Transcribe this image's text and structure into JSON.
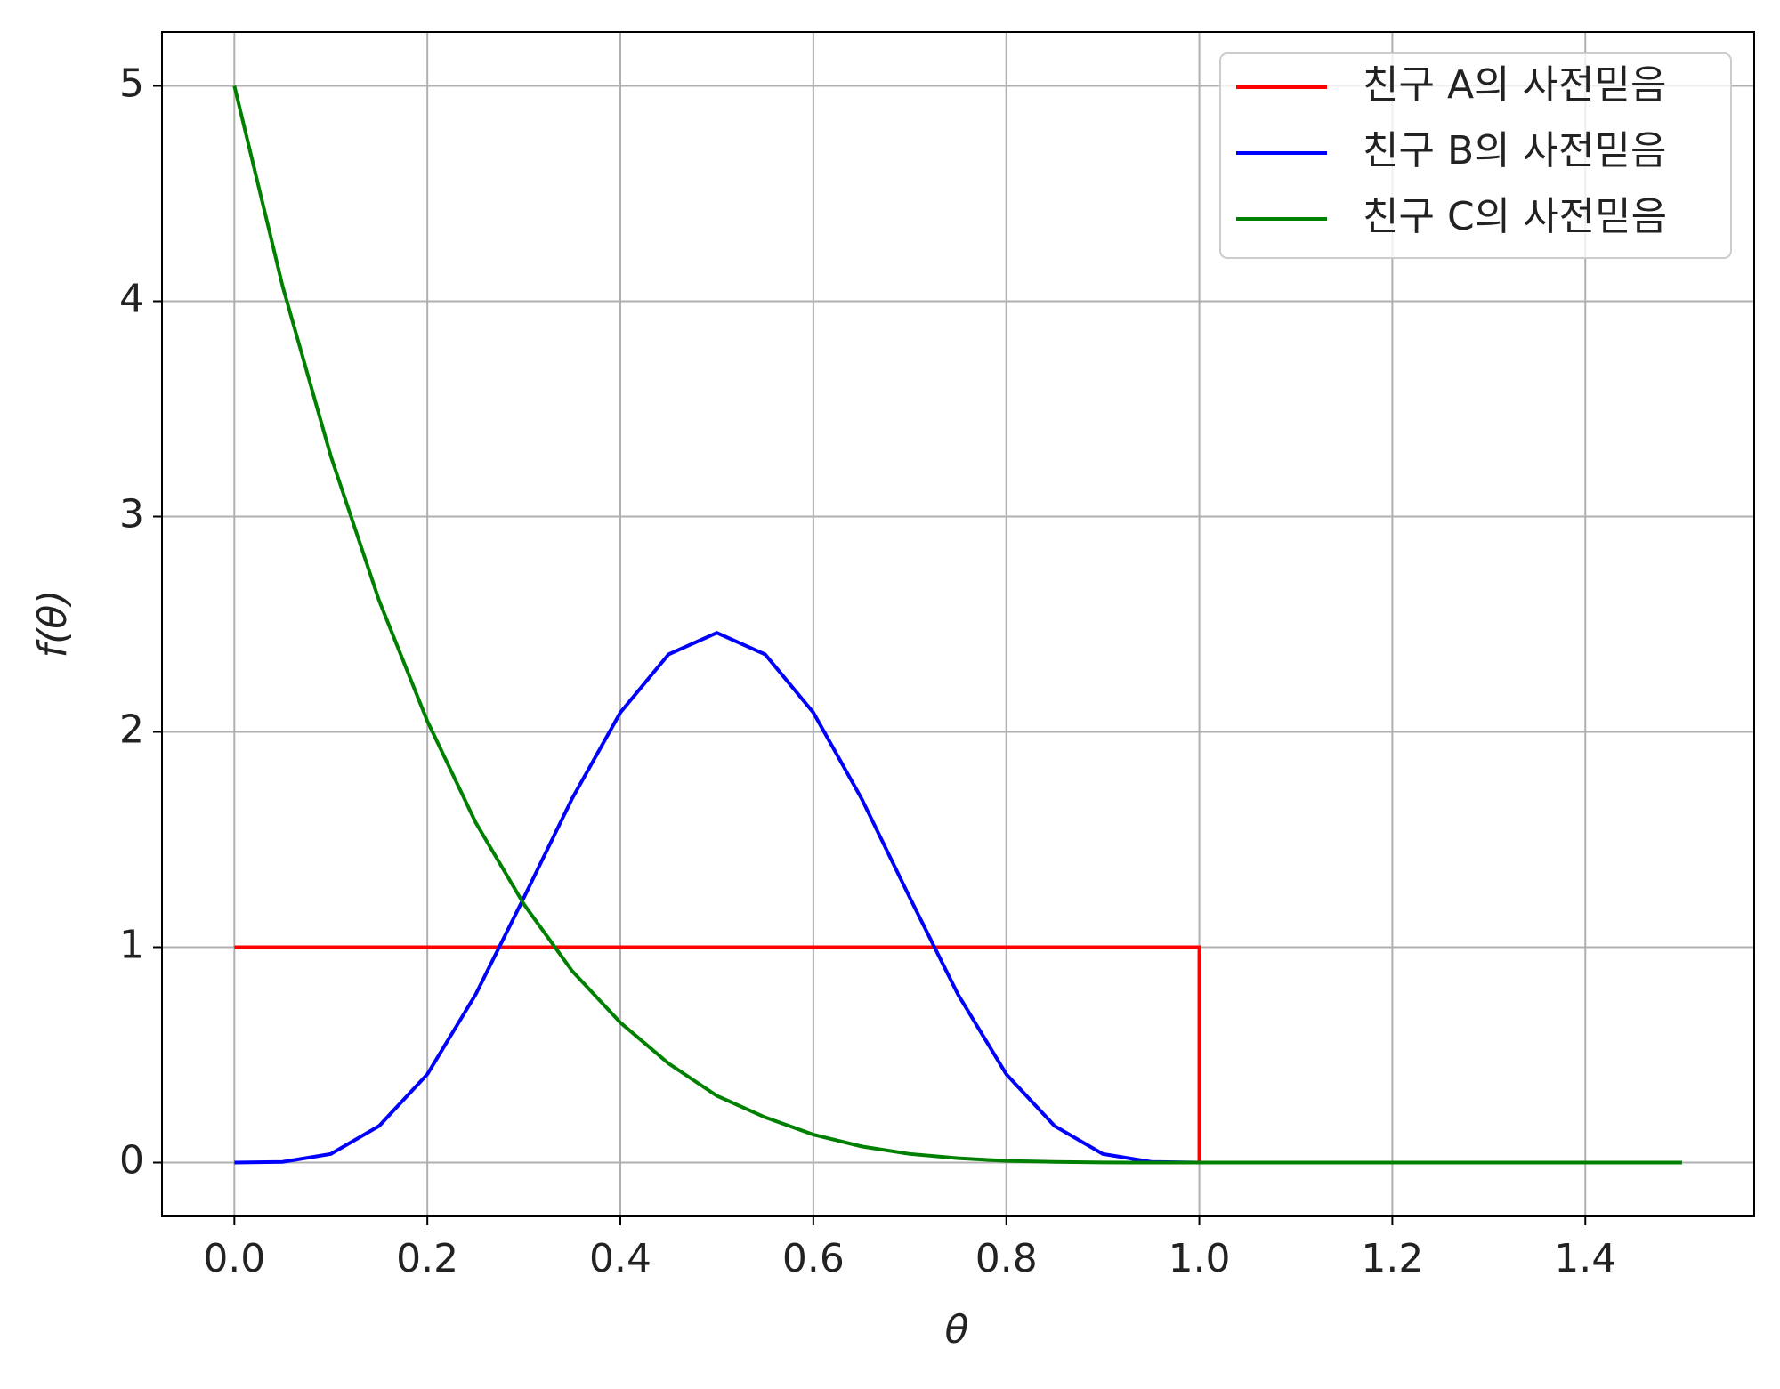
{
  "chart_data": {
    "type": "line",
    "xlabel": "θ",
    "ylabel": "f(θ)",
    "x": [
      0,
      0.05,
      0.1,
      0.15,
      0.2,
      0.25,
      0.3,
      0.35,
      0.4,
      0.45,
      0.5,
      0.55,
      0.6,
      0.65,
      0.7,
      0.75,
      0.8,
      0.85,
      0.9,
      0.95,
      1.0,
      1.05,
      1.1,
      1.15,
      1.2,
      1.25,
      1.3,
      1.35,
      1.4,
      1.45,
      1.5
    ],
    "series": [
      {
        "name": "친구 A의 사전믿음",
        "color": "#ff0000",
        "x": [
          0,
          1.0,
          1.0,
          1.5
        ],
        "values": [
          1,
          1,
          0,
          0
        ]
      },
      {
        "name": "친구 B의 사전믿음",
        "color": "#0000ff",
        "values": [
          0,
          0.003,
          0.04,
          0.17,
          0.41,
          0.78,
          1.23,
          1.69,
          2.09,
          2.36,
          2.46,
          2.36,
          2.09,
          1.69,
          1.23,
          0.78,
          0.41,
          0.17,
          0.04,
          0.003,
          0,
          0,
          0,
          0,
          0,
          0,
          0,
          0,
          0,
          0,
          0
        ]
      },
      {
        "name": "친구 C의 사전믿음",
        "color": "#008000",
        "values": [
          5,
          4.07,
          3.28,
          2.61,
          2.05,
          1.58,
          1.2,
          0.89,
          0.65,
          0.46,
          0.31,
          0.21,
          0.13,
          0.075,
          0.04,
          0.02,
          0.008,
          0.003,
          0.0005,
          0,
          0,
          0,
          0,
          0,
          0,
          0,
          0,
          0,
          0,
          0,
          0
        ]
      }
    ],
    "xlim": [
      -0.075,
      1.575
    ],
    "ylim": [
      -0.25,
      5.25
    ],
    "xticks": [
      {
        "value": 0,
        "label": "0.0"
      },
      0.2,
      0.4,
      0.6,
      0.8,
      {
        "value": 1,
        "label": "1.0"
      },
      1.2,
      1.4
    ],
    "yticks": [
      0,
      1,
      2,
      3,
      4,
      5
    ],
    "grid": true,
    "legend": "upper right"
  }
}
